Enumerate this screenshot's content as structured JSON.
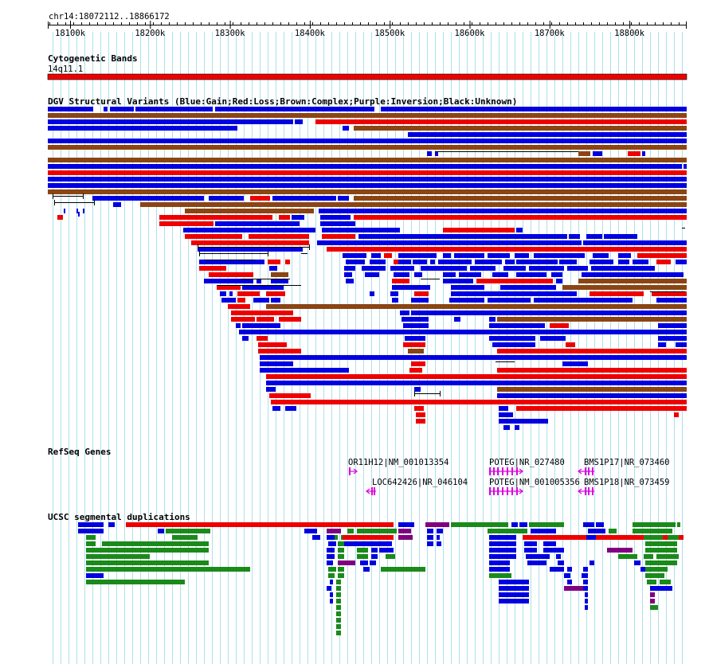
{
  "landmark": "chr14:18072112..18866172",
  "ruler": {
    "ticks": [
      "18100k",
      "18200k",
      "18300k",
      "18400k",
      "18500k",
      "18600k",
      "18700k",
      "18800k"
    ]
  },
  "colors": {
    "blue": "#0000e0",
    "red": "#ee0000",
    "brown": "#8b4513",
    "green": "#1a8a1a",
    "purple": "#800080",
    "magenta": "#dd00dd",
    "grid": "#aee0ec"
  },
  "tracks": {
    "cytoband": {
      "title": "Cytogenetic Bands",
      "band_label": "14q11.1"
    },
    "dgv": {
      "title": "DGV Structural Variants (Blue:Gain;Red:Loss;Brown:Complex;Purple:Inversion;Black:Unknown)"
    },
    "refseq": {
      "title": "RefSeq Genes",
      "genes": [
        {
          "label": "OR11H12|NM_001013354",
          "strand": "+"
        },
        {
          "label": "LOC642426|NR_046104",
          "strand": "-"
        },
        {
          "label": "POTEG|NR_027480",
          "strand": "+"
        },
        {
          "label": "POTEG|NM_001005356",
          "strand": "+"
        },
        {
          "label": "BMS1P17|NR_073460",
          "strand": "-"
        },
        {
          "label": "BMS1P18|NR_073459",
          "strand": "-"
        }
      ]
    },
    "segdup": {
      "title": "UCSC segmental duplications"
    }
  }
}
